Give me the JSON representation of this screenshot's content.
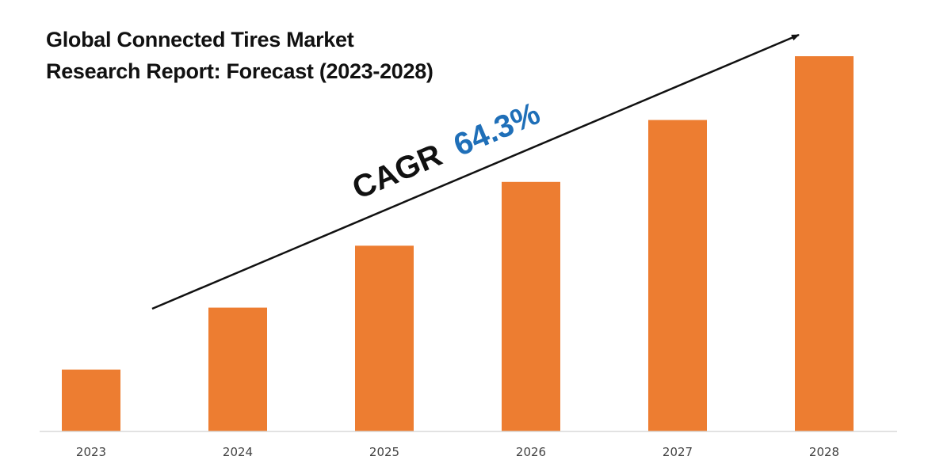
{
  "title_lines": [
    "Global Connected Tires Market",
    "Research Report: Forecast (2023-2028)"
  ],
  "annotation": {
    "prefix": "CAGR",
    "value": "64.3%",
    "prefix_color": "#111111",
    "value_color": "#1F6FB8"
  },
  "colors": {
    "bar": "#ED7D31",
    "axis": "#D9D9D9",
    "arrow": "#111111"
  },
  "chart_data": {
    "type": "bar",
    "categories": [
      "2023",
      "2024",
      "2025",
      "2026",
      "2027",
      "2028"
    ],
    "values": [
      16.5,
      33,
      49.5,
      66.5,
      83,
      100
    ],
    "ylim": [
      0,
      100
    ],
    "grid": false,
    "legend": "none",
    "title": "Global Connected Tires Market Research Report: Forecast (2023-2028)",
    "xlabel": "",
    "ylabel": ""
  }
}
